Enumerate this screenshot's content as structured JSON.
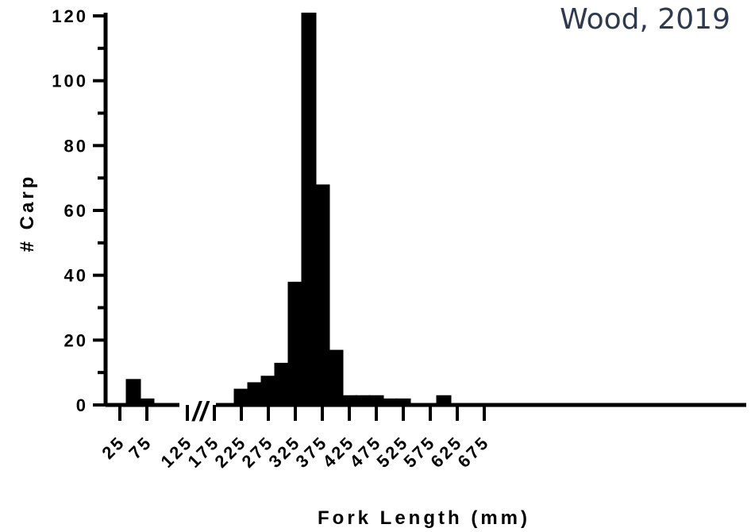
{
  "annotation": "Wood, 2019",
  "chart_data": {
    "type": "bar",
    "xlabel": "Fork Length (mm)",
    "ylabel": "# Carp",
    "ylim": [
      0,
      120
    ],
    "y_ticks": [
      "0",
      "20",
      "40",
      "60",
      "80",
      "100",
      "120"
    ],
    "x_tick_labels": [
      "25",
      "75",
      "125",
      "175",
      "225",
      "275",
      "325",
      "375",
      "425",
      "475",
      "525",
      "575",
      "625",
      "675"
    ],
    "axis_break": "//",
    "grid": false,
    "bar_color": "#000000",
    "bins": [
      50,
      75,
      225,
      250,
      275,
      300,
      325,
      350,
      375,
      400,
      425,
      450,
      475,
      500,
      525,
      550,
      575,
      600,
      625,
      650,
      675
    ],
    "values": [
      8,
      2,
      5,
      7,
      9,
      13,
      38,
      121,
      68,
      17,
      3,
      3,
      3,
      2,
      2,
      0,
      0,
      3,
      0,
      0,
      0
    ]
  }
}
